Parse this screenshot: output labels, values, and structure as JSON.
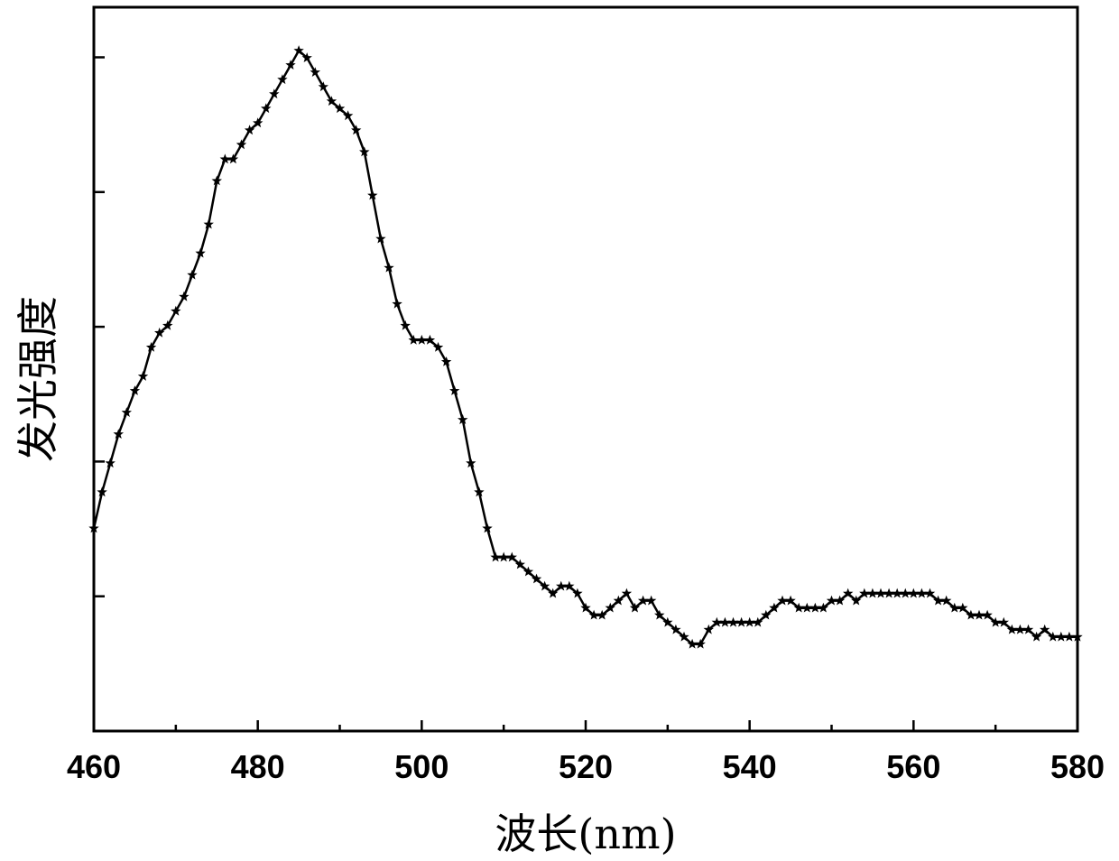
{
  "chart_data": {
    "type": "line",
    "title": "",
    "xlabel": "波长(nm)",
    "ylabel": "发光强度",
    "xlim": [
      460,
      580
    ],
    "ylim": [
      0,
      1
    ],
    "x_ticks": [
      460,
      480,
      500,
      520,
      540,
      560,
      580
    ],
    "x_tick_labels": [
      "460",
      "480",
      "500",
      "520",
      "540",
      "560",
      "580"
    ],
    "y_tick_labels_shown": false,
    "grid": false,
    "legend": "none",
    "marker": "star",
    "line_color": "#000000",
    "series": [
      {
        "x": [
          460,
          461,
          462,
          463,
          464,
          465,
          466,
          467,
          468,
          469,
          470,
          471,
          472,
          473,
          474,
          475,
          476,
          477,
          478,
          479,
          480,
          481,
          482,
          483,
          484,
          485,
          486,
          487,
          488,
          489,
          490,
          491,
          492,
          493,
          494,
          495,
          496,
          497,
          498,
          499,
          500,
          501,
          502,
          503,
          504,
          505,
          506,
          507,
          508,
          509,
          510,
          511,
          512,
          513,
          514,
          515,
          516,
          517,
          518,
          519,
          520,
          521,
          522,
          523,
          524,
          525,
          526,
          527,
          528,
          529,
          530,
          531,
          532,
          533,
          534,
          535,
          536,
          537,
          538,
          539,
          540,
          541,
          542,
          543,
          544,
          545,
          546,
          547,
          548,
          549,
          550,
          551,
          552,
          553,
          554,
          555,
          556,
          557,
          558,
          559,
          560,
          561,
          562,
          563,
          564,
          565,
          566,
          567,
          568,
          569,
          570,
          571,
          572,
          573,
          574,
          575,
          576,
          577,
          578,
          579,
          580
        ],
        "values": [
          0.28,
          0.33,
          0.37,
          0.41,
          0.44,
          0.47,
          0.49,
          0.53,
          0.55,
          0.56,
          0.58,
          0.6,
          0.63,
          0.66,
          0.7,
          0.76,
          0.79,
          0.79,
          0.81,
          0.83,
          0.84,
          0.86,
          0.88,
          0.9,
          0.92,
          0.94,
          0.93,
          0.91,
          0.89,
          0.87,
          0.86,
          0.85,
          0.83,
          0.8,
          0.74,
          0.68,
          0.64,
          0.59,
          0.56,
          0.54,
          0.54,
          0.54,
          0.53,
          0.51,
          0.47,
          0.43,
          0.37,
          0.33,
          0.28,
          0.24,
          0.24,
          0.24,
          0.23,
          0.22,
          0.21,
          0.2,
          0.19,
          0.2,
          0.2,
          0.19,
          0.17,
          0.16,
          0.16,
          0.17,
          0.18,
          0.19,
          0.17,
          0.18,
          0.18,
          0.16,
          0.15,
          0.14,
          0.13,
          0.12,
          0.12,
          0.14,
          0.15,
          0.15,
          0.15,
          0.15,
          0.15,
          0.15,
          0.16,
          0.17,
          0.18,
          0.18,
          0.17,
          0.17,
          0.17,
          0.17,
          0.18,
          0.18,
          0.19,
          0.18,
          0.19,
          0.19,
          0.19,
          0.19,
          0.19,
          0.19,
          0.19,
          0.19,
          0.19,
          0.18,
          0.18,
          0.17,
          0.17,
          0.16,
          0.16,
          0.16,
          0.15,
          0.15,
          0.14,
          0.14,
          0.14,
          0.13,
          0.14,
          0.13,
          0.13,
          0.13,
          0.13
        ]
      }
    ]
  }
}
